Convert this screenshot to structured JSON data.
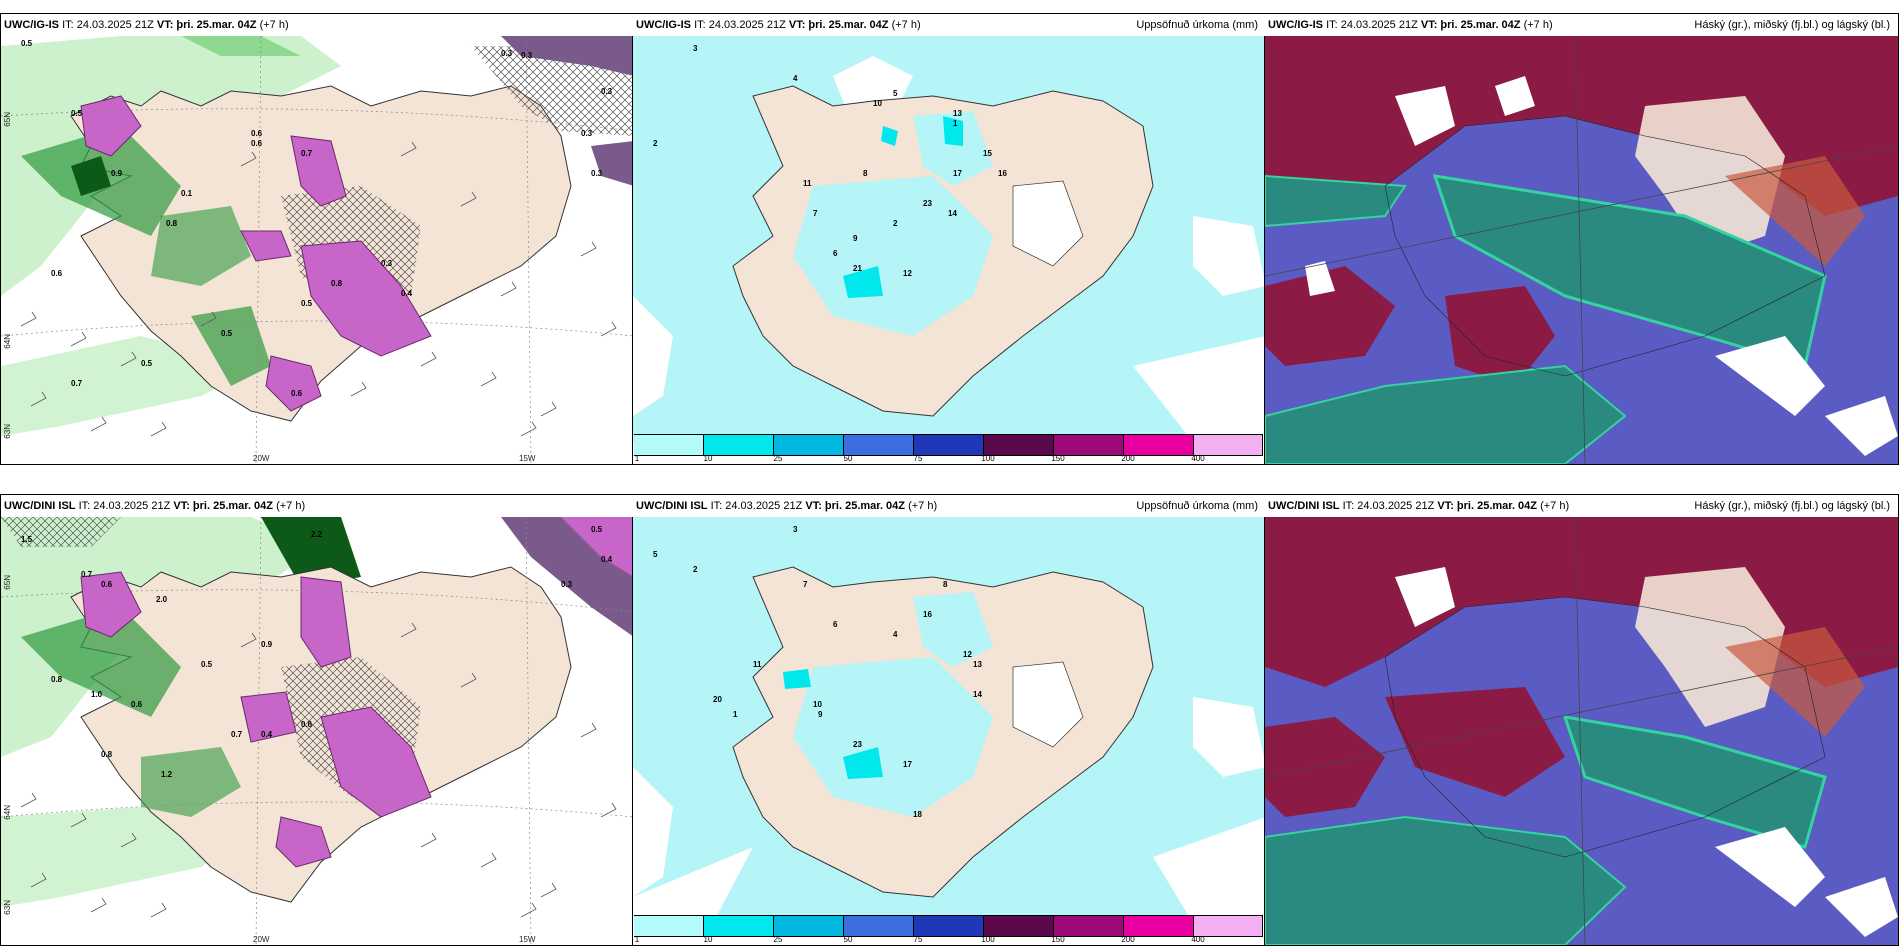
{
  "rows": [
    {
      "model": "UWC/IG-IS",
      "it_label": "IT: 24.03.2025 21Z",
      "vt_label": "VT: þri. 25.mar. 04Z",
      "offset": "(+7 h)",
      "panel1": {
        "labels": [
          "0.3",
          "0.3",
          "0.3",
          "0.3",
          "0.3",
          "0.5",
          "0.5",
          "0.7",
          "0.6",
          "0.9",
          "0.1",
          "0.8",
          "0.6",
          "0.7",
          "0.5",
          "0.5",
          "0.6",
          "0.8",
          "0.5",
          "0.3",
          "0.4",
          "0.6"
        ],
        "axis": {
          "lat_top": "65N",
          "lat_mid": "64N",
          "lat_bot": "63N",
          "lon_left": "20W",
          "lon_right": "15W"
        }
      },
      "panel2": {
        "title_right": "Uppsöfnuð úrkoma (mm)",
        "labels": [
          "3",
          "2",
          "4",
          "5",
          "13",
          "15",
          "16",
          "17",
          "14",
          "10",
          "11",
          "7",
          "9",
          "6",
          "12",
          "21",
          "23",
          "2",
          "1",
          "8"
        ]
      },
      "panel3": {
        "title_right": "Háský (gr.), miðský (fj.bl.) og lágský (bl.)"
      }
    },
    {
      "model": "UWC/DINI ISL",
      "it_label": "IT: 24.03.2025 21Z",
      "vt_label": "VT: þri. 25.mar. 04Z",
      "offset": "(+7 h)",
      "panel1": {
        "labels": [
          "2.2",
          "0.5",
          "0.4",
          "0.3",
          "1.5",
          "0.7",
          "0.6",
          "2.0",
          "0.8",
          "1.0",
          "0.5",
          "0.9",
          "0.6",
          "0.7",
          "0.6",
          "0.8",
          "1.2",
          "0.4"
        ],
        "axis": {
          "lat_top": "65N",
          "lat_mid": "64N",
          "lat_bot": "63N",
          "lon_left": "20W",
          "lon_right": "15W"
        }
      },
      "panel2": {
        "title_right": "Uppsöfnuð úrkoma (mm)",
        "labels": [
          "3",
          "5",
          "2",
          "7",
          "16",
          "12",
          "13",
          "14",
          "20",
          "10",
          "9",
          "11",
          "6",
          "4",
          "23",
          "17",
          "18",
          "1",
          "8"
        ]
      },
      "panel3": {
        "title_right": "Háský (gr.), miðský (fj.bl.) og lágský (bl.)"
      }
    }
  ],
  "colorbar": {
    "ticks": [
      "1",
      "10",
      "25",
      "50",
      "75",
      "100",
      "150",
      "200",
      "400"
    ],
    "colors": [
      "#b3fbfb",
      "#00e8ec",
      "#00b8e0",
      "#3b6fe0",
      "#1f38b8",
      "#5a0a4a",
      "#9c0a7a",
      "#e800a0",
      "#f2b0f2"
    ]
  },
  "colors": {
    "land": "#f3e4d6",
    "precip_light": "#c6f0c6",
    "precip_green": "#2f9a3f",
    "precip_dark": "#0d5a18",
    "snow_purple": "#c865c8",
    "accum_cyan": "#b5f5f7",
    "cloud_high": "#8b1a45",
    "cloud_mid": "#5b5bc4",
    "cloud_low": "#2a8a80",
    "cloud_teal": "#34d3a0"
  }
}
